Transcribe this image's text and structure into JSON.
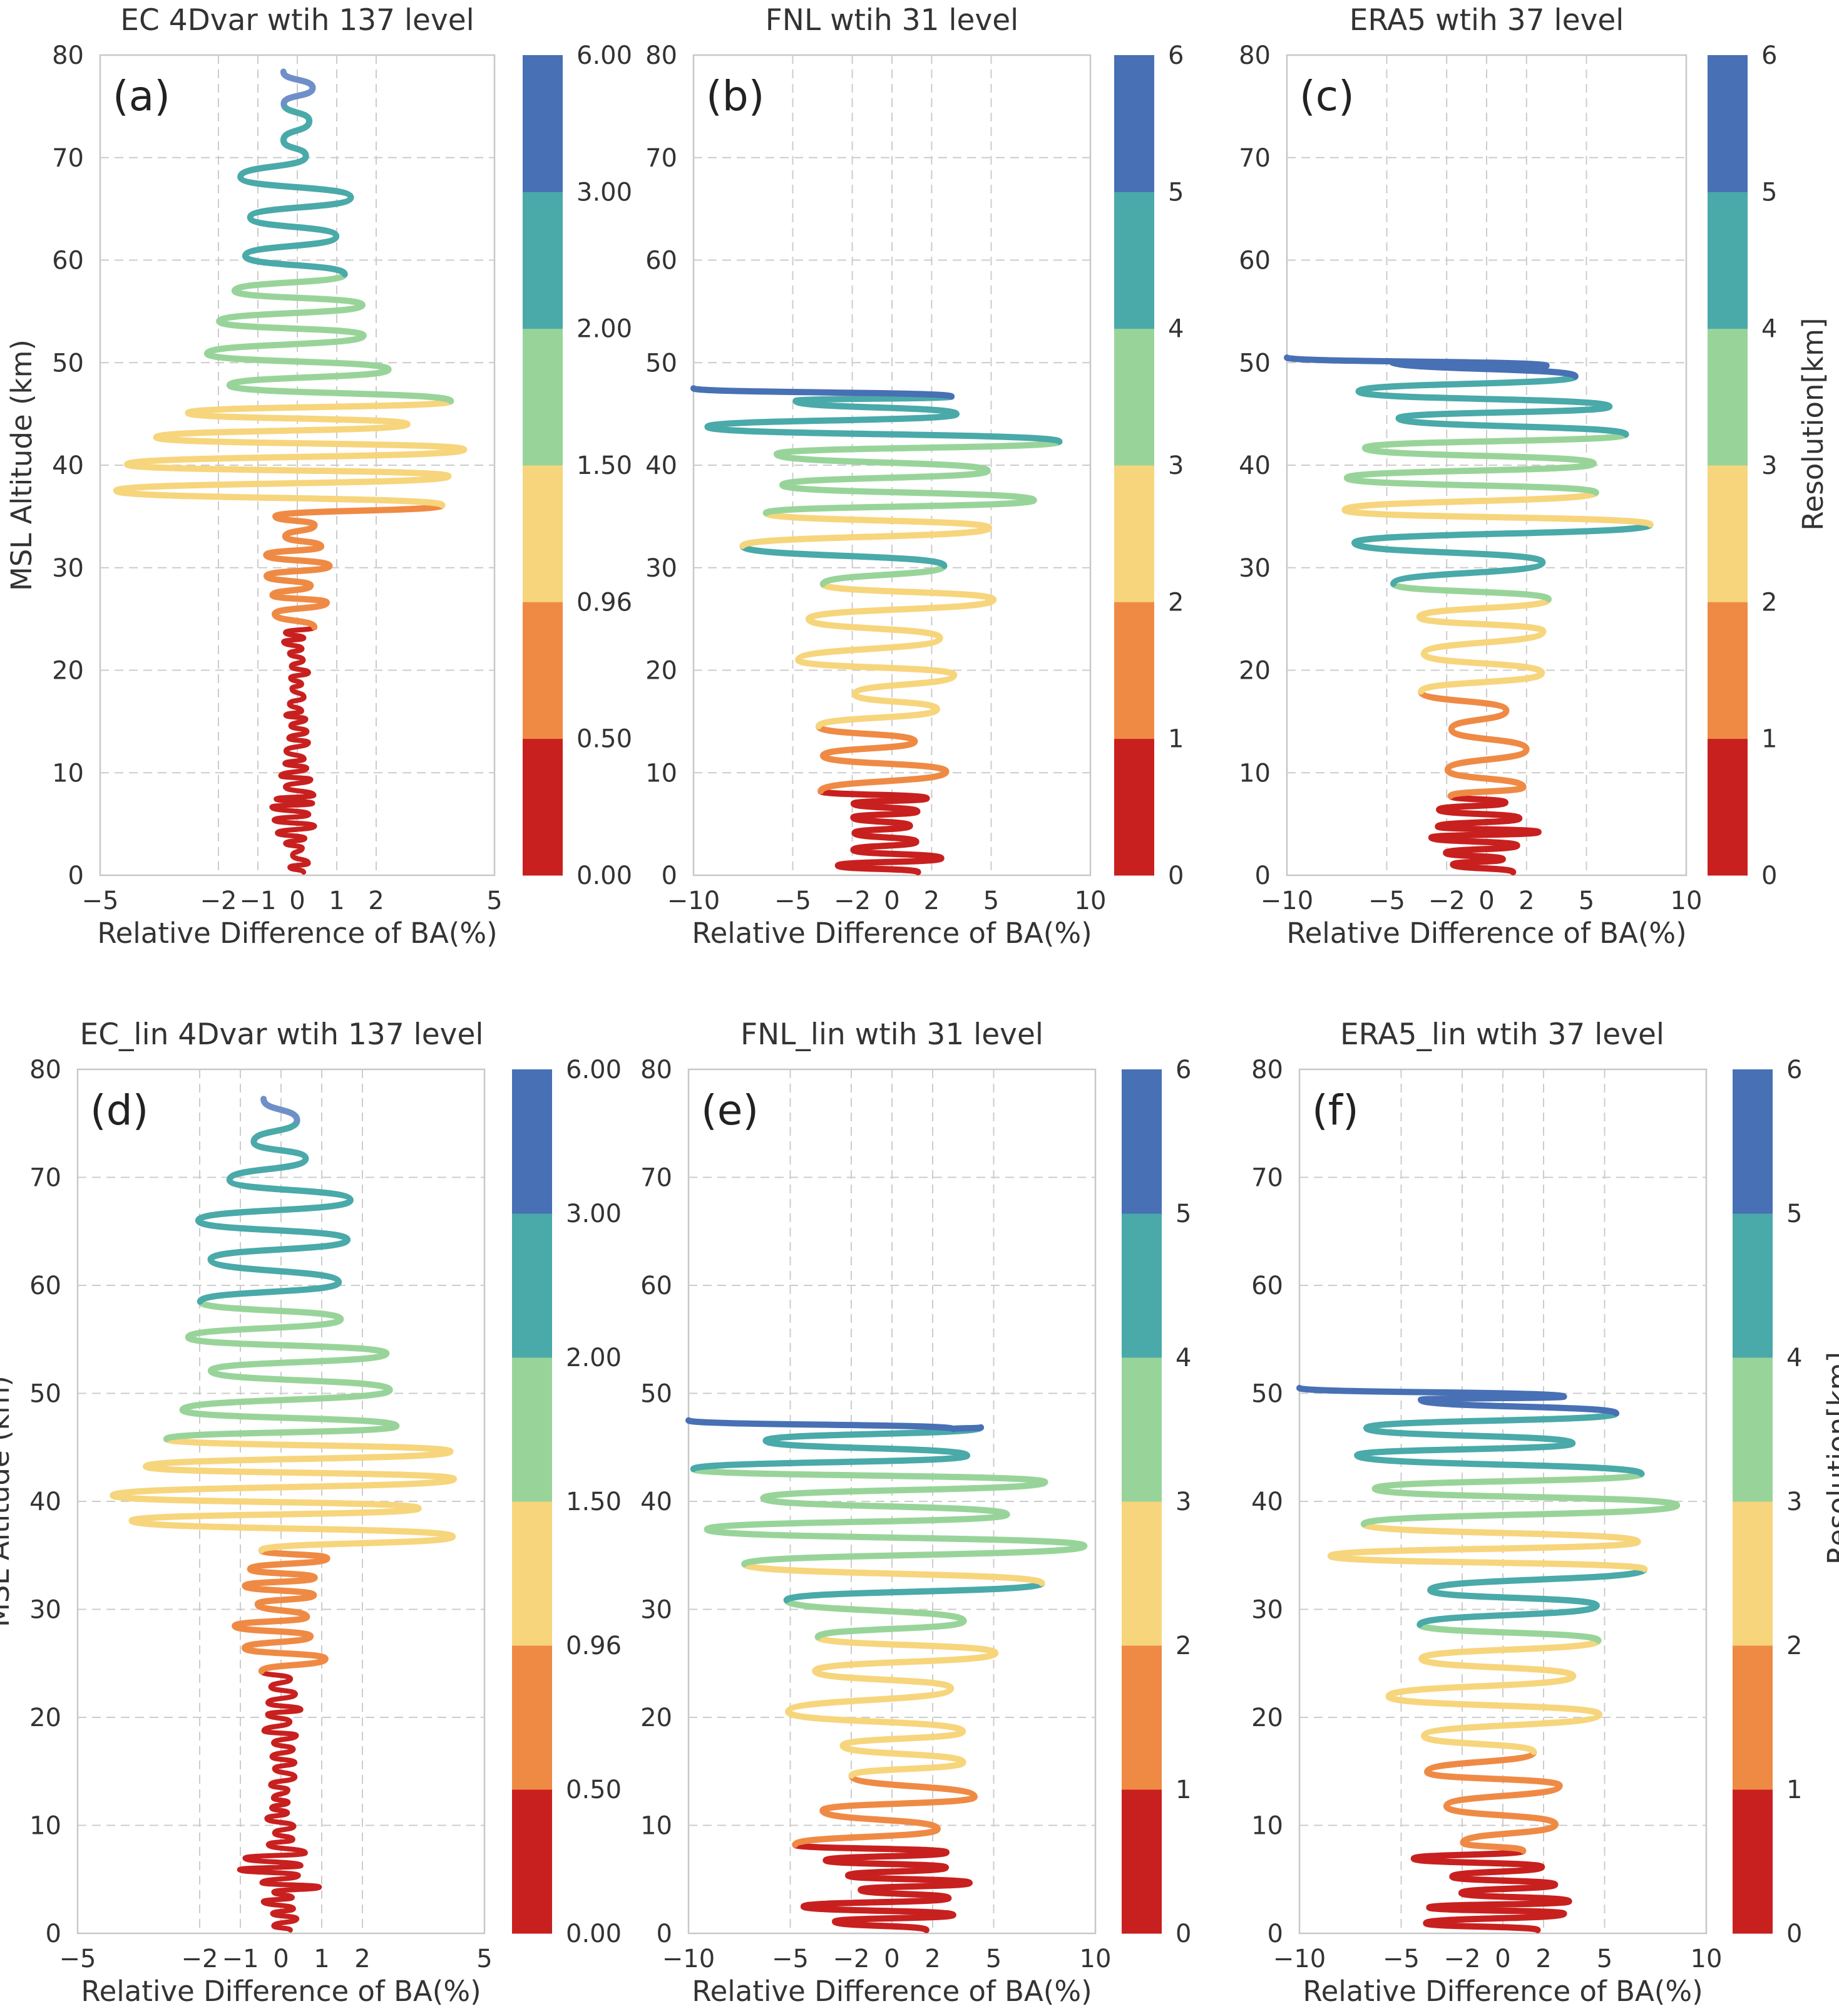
{
  "chart_data": [
    {
      "panel": "a",
      "label": "(a)",
      "title": "EC 4Dvar wtih 137 level",
      "type": "line",
      "xlabel": "Relative Difference of BA(%)",
      "ylabel": "MSL Altitude (km)",
      "cbar_label": "",
      "xlim": [
        -5,
        5
      ],
      "ylim": [
        0,
        80
      ],
      "xticks": [
        -5,
        -2,
        -1,
        0,
        1,
        2,
        5
      ],
      "xticklabels": [
        "−5",
        "−2",
        "−1",
        "0",
        "1",
        "2",
        "5"
      ],
      "yticks": [
        0,
        10,
        20,
        30,
        40,
        50,
        60,
        70,
        80
      ],
      "cbar_ticks": [
        "0.00",
        "0.50",
        "0.96",
        "1.50",
        "2.00",
        "3.00",
        "6.00"
      ],
      "variant": "ec",
      "amp": [
        0.6,
        1.5,
        4.8,
        1.5,
        0.25
      ],
      "seed": 11
    },
    {
      "panel": "b",
      "label": "(b)",
      "title": "FNL wtih 31 level",
      "type": "line",
      "xlabel": "Relative Difference of BA(%)",
      "ylabel": "",
      "cbar_label": "",
      "xlim": [
        -10,
        10
      ],
      "ylim": [
        0,
        80
      ],
      "xticks": [
        -10,
        -5,
        -2,
        0,
        2,
        5,
        10
      ],
      "xticklabels": [
        "−10",
        "−5",
        "−2",
        "0",
        "2",
        "5",
        "10"
      ],
      "yticks": [
        0,
        10,
        20,
        30,
        40,
        50,
        60,
        70,
        80
      ],
      "cbar_ticks": [
        "0",
        "1",
        "2",
        "3",
        "4",
        "5",
        "6"
      ],
      "variant": "fnl",
      "top": 47.5,
      "amp": [
        2.5,
        5,
        9,
        7
      ],
      "seed": 23
    },
    {
      "panel": "c",
      "label": "(c)",
      "title": "ERA5 wtih 37 level",
      "type": "line",
      "xlabel": "Relative Difference of BA(%)",
      "ylabel": "",
      "cbar_label": "Resolution[km]",
      "xlim": [
        -10,
        10
      ],
      "ylim": [
        0,
        80
      ],
      "xticks": [
        -10,
        -5,
        -2,
        0,
        2,
        5,
        10
      ],
      "xticklabels": [
        "−10",
        "−5",
        "−2",
        "0",
        "2",
        "5",
        "10"
      ],
      "yticks": [
        0,
        10,
        20,
        30,
        40,
        50,
        60,
        70,
        80
      ],
      "cbar_ticks": [
        "0",
        "1",
        "2",
        "3",
        "4",
        "5",
        "6"
      ],
      "variant": "era5",
      "top": 50.5,
      "amp": [
        2.5,
        4.5,
        9.5,
        7
      ],
      "seed": 37
    },
    {
      "panel": "d",
      "label": "(d)",
      "title": "EC_lin 4Dvar wtih 137 level",
      "type": "line",
      "xlabel": "Relative Difference of BA(%)",
      "ylabel": "MSL Altitude (km)",
      "cbar_label": "",
      "xlim": [
        -5,
        5
      ],
      "ylim": [
        0,
        80
      ],
      "xticks": [
        -5,
        -2,
        -1,
        0,
        1,
        2,
        5
      ],
      "xticklabels": [
        "−5",
        "−2",
        "−1",
        "0",
        "1",
        "2",
        "5"
      ],
      "yticks": [
        0,
        10,
        20,
        30,
        40,
        50,
        60,
        70,
        80
      ],
      "cbar_ticks": [
        "0.00",
        "0.50",
        "0.96",
        "1.50",
        "2.00",
        "3.00",
        "6.00"
      ],
      "variant": "ec",
      "amp": [
        1.0,
        2.0,
        4.5,
        1.8,
        0.35
      ],
      "seed": 53
    },
    {
      "panel": "e",
      "label": "(e)",
      "title": "FNL_lin wtih 31 level",
      "type": "line",
      "xlabel": "Relative Difference of BA(%)",
      "ylabel": "",
      "cbar_label": "",
      "xlim": [
        -10,
        10
      ],
      "ylim": [
        0,
        80
      ],
      "xticks": [
        -10,
        -5,
        -2,
        0,
        2,
        5,
        10
      ],
      "xticklabels": [
        "−10",
        "−5",
        "−2",
        "0",
        "2",
        "5",
        "10"
      ],
      "yticks": [
        0,
        10,
        20,
        30,
        40,
        50,
        60,
        70,
        80
      ],
      "cbar_ticks": [
        "0",
        "1",
        "2",
        "3",
        "4",
        "5",
        "6"
      ],
      "variant": "fnl",
      "top": 47.5,
      "amp": [
        3,
        5,
        10,
        7
      ],
      "seed": 71
    },
    {
      "panel": "f",
      "label": "(f)",
      "title": "ERA5_lin wtih 37 level",
      "type": "line",
      "xlabel": "Relative Difference of BA(%)",
      "ylabel": "",
      "cbar_label": "Resolution[km]",
      "xlim": [
        -10,
        10
      ],
      "ylim": [
        0,
        80
      ],
      "xticks": [
        -10,
        -5,
        -2,
        0,
        2,
        5,
        10
      ],
      "xticklabels": [
        "−10",
        "−5",
        "−2",
        "0",
        "2",
        "5",
        "10"
      ],
      "yticks": [
        0,
        10,
        20,
        30,
        40,
        50,
        60,
        70,
        80
      ],
      "cbar_ticks": [
        "0",
        "1",
        "2",
        "3",
        "4",
        "5",
        "6"
      ],
      "variant": "era5",
      "top": 50.5,
      "amp": [
        3,
        5,
        10,
        7
      ],
      "seed": 89
    }
  ],
  "colorbar_colors": [
    "#c8201f",
    "#ef8a45",
    "#f6d57c",
    "#98d49a",
    "#4aa9a9",
    "#4870b4"
  ],
  "line_colors": {
    "red": "#c8201f",
    "orange": "#ef8a45",
    "yellow": "#f6d57c",
    "green": "#98d49a",
    "teal": "#4aa9a9",
    "blue": "#4870b4",
    "topblue": "#6f8fc8"
  }
}
